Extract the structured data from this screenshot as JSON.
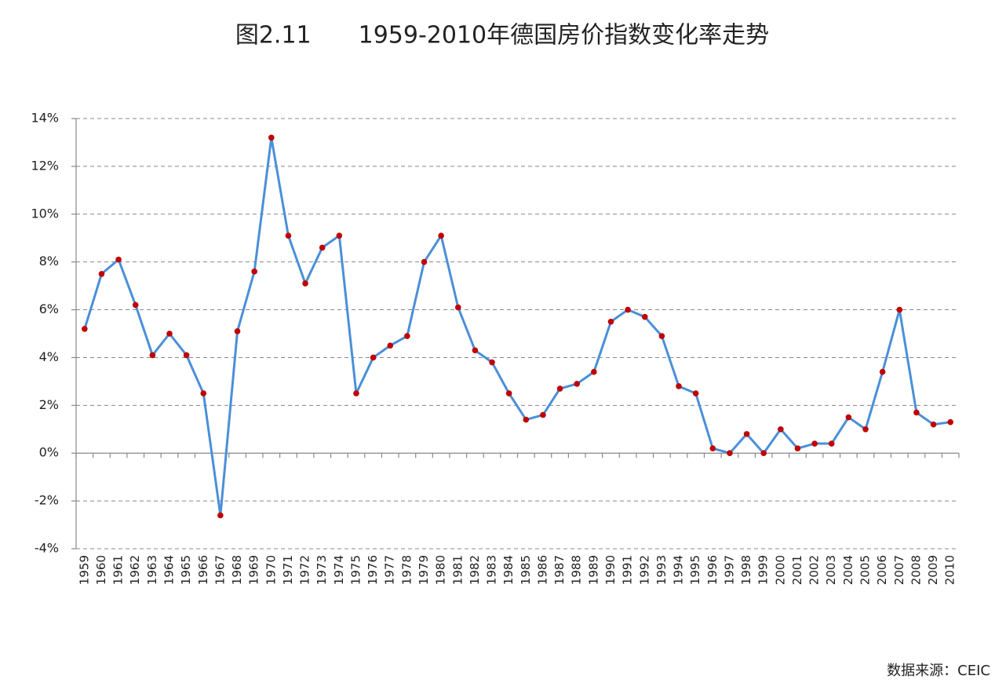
{
  "chart_data": {
    "type": "line",
    "title": "图2.11　　1959-2010年德国房价指数变化率走势",
    "source": "数据来源：CEIC",
    "categories": [
      "1959",
      "1960",
      "1961",
      "1962",
      "1963",
      "1964",
      "1965",
      "1966",
      "1967",
      "1968",
      "1969",
      "1970",
      "1971",
      "1972",
      "1973",
      "1974",
      "1975",
      "1976",
      "1977",
      "1978",
      "1979",
      "1980",
      "1981",
      "1982",
      "1983",
      "1984",
      "1985",
      "1986",
      "1987",
      "1988",
      "1989",
      "1990",
      "1991",
      "1992",
      "1993",
      "1994",
      "1995",
      "1996",
      "1997",
      "1998",
      "1999",
      "2000",
      "2001",
      "2002",
      "2003",
      "2004",
      "2005",
      "2006",
      "2007",
      "2008",
      "2009",
      "2010"
    ],
    "series": [
      {
        "color": "#4a8fd8",
        "marker_color": "#c00000",
        "values": [
          5.2,
          7.5,
          8.1,
          6.2,
          4.1,
          5.0,
          4.1,
          2.5,
          -2.6,
          5.1,
          7.6,
          13.2,
          9.1,
          7.1,
          8.6,
          9.1,
          2.5,
          4.0,
          4.5,
          4.9,
          8.0,
          9.1,
          6.1,
          4.3,
          3.8,
          2.5,
          1.4,
          1.6,
          2.7,
          2.9,
          3.4,
          5.5,
          6.0,
          5.7,
          4.9,
          2.8,
          2.5,
          0.2,
          0.0,
          0.8,
          0.0,
          1.0,
          0.2,
          0.4,
          0.4,
          1.5,
          1.0,
          3.4,
          6.0,
          1.7,
          1.2,
          1.3
        ]
      }
    ],
    "ylim": [
      -4,
      14
    ],
    "yticks": [
      {
        "value": -4,
        "label": "-4%"
      },
      {
        "value": -2,
        "label": "-2%"
      },
      {
        "value": 0,
        "label": "0%"
      },
      {
        "value": 2,
        "label": "2%"
      },
      {
        "value": 4,
        "label": "4%"
      },
      {
        "value": 6,
        "label": "6%"
      },
      {
        "value": 8,
        "label": "8%"
      },
      {
        "value": 10,
        "label": "10%"
      },
      {
        "value": 12,
        "label": "12%"
      },
      {
        "value": 14,
        "label": "14%"
      }
    ],
    "grid": true
  }
}
